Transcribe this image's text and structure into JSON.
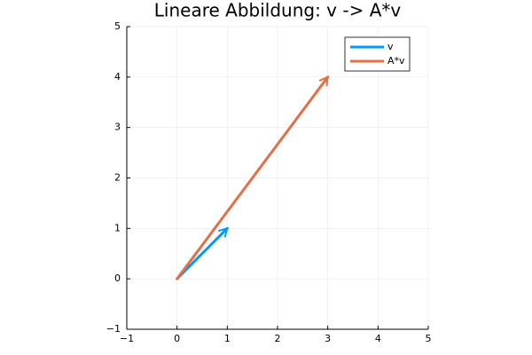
{
  "chart_data": {
    "type": "line",
    "title": "Lineare Abbildung: v -> A*v",
    "series": [
      {
        "name": "v",
        "color": "#009af9",
        "x": [
          0,
          1
        ],
        "values": [
          0,
          1
        ]
      },
      {
        "name": "A*v",
        "color": "#e26f46",
        "x": [
          0,
          3
        ],
        "values": [
          0,
          4
        ]
      }
    ],
    "xlim": [
      -1,
      5
    ],
    "ylim": [
      -1,
      5
    ],
    "xticks": [
      {
        "value": -1,
        "label": "−1"
      },
      0,
      1,
      2,
      3,
      4,
      5
    ],
    "yticks": [
      {
        "value": -1,
        "label": "−1"
      },
      0,
      1,
      2,
      3,
      4,
      5
    ],
    "grid": true,
    "legend": "top right",
    "arrows": true
  }
}
